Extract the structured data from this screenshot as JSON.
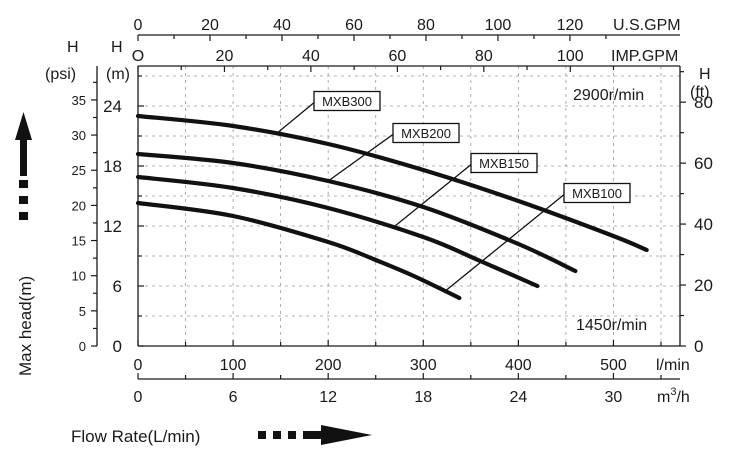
{
  "chart_data": {
    "type": "line",
    "axes": {
      "top_gpm": {
        "unit": "U.S.GPM",
        "ticks": [
          "0",
          "20",
          "40",
          "60",
          "80",
          "100",
          "120"
        ],
        "values": [
          0,
          20,
          40,
          60,
          80,
          100,
          120
        ]
      },
      "top_imp": {
        "unit": "IMP.GPM",
        "ticks": [
          "O",
          "20",
          "40",
          "60",
          "80",
          "100"
        ],
        "values": [
          0,
          20,
          40,
          60,
          80,
          100
        ]
      },
      "bottom_lmin": {
        "unit": "l/min",
        "ticks": [
          "0",
          "100",
          "200",
          "300",
          "400",
          "500"
        ],
        "values": [
          0,
          100,
          200,
          300,
          400,
          500
        ],
        "range": [
          0,
          570
        ]
      },
      "bottom_m3h": {
        "unit_main": "m",
        "unit_sup": "3",
        "unit_tail": "/h",
        "ticks": [
          "0",
          "6",
          "12",
          "18",
          "24",
          "30"
        ],
        "values": [
          0,
          6,
          12,
          18,
          24,
          30
        ]
      },
      "left_psi": {
        "title_top": "H",
        "title_unit": "(psi)",
        "ticks": [
          "0",
          "5",
          "10",
          "15",
          "20",
          "25",
          "30",
          "35"
        ],
        "values": [
          0,
          5,
          10,
          15,
          20,
          25,
          30,
          35
        ]
      },
      "left_m": {
        "title_top": "H",
        "title_unit": "(m)",
        "ticks": [
          "0",
          "6",
          "12",
          "18",
          "24"
        ],
        "values": [
          0,
          6,
          12,
          18,
          24
        ],
        "range": [
          0,
          28
        ]
      },
      "right_ft": {
        "title_top": "H",
        "title_unit": "(ft)",
        "ticks": [
          "0",
          "20",
          "40",
          "60",
          "80"
        ],
        "values": [
          0,
          20,
          40,
          60,
          80
        ]
      }
    },
    "x_label": "Flow Rate(L/min)",
    "y_label": "Max head(m)",
    "annotations": {
      "speed_high": "2900r/min",
      "speed_low": "1450r/min"
    },
    "grid": true,
    "series": [
      {
        "name": "MXB300",
        "x": [
          0,
          100,
          200,
          300,
          400,
          500,
          535
        ],
        "y": [
          23.0,
          22.0,
          20.2,
          17.6,
          14.5,
          11.0,
          9.6
        ]
      },
      {
        "name": "MXB200",
        "x": [
          0,
          100,
          200,
          300,
          400,
          460
        ],
        "y": [
          19.2,
          18.3,
          16.5,
          13.9,
          10.2,
          7.5
        ]
      },
      {
        "name": "MXB150",
        "x": [
          0,
          100,
          200,
          300,
          360,
          420
        ],
        "y": [
          16.9,
          15.8,
          13.8,
          10.9,
          8.5,
          6.0
        ]
      },
      {
        "name": "MXB100",
        "x": [
          0,
          100,
          200,
          250,
          290,
          338
        ],
        "y": [
          14.3,
          13.0,
          10.4,
          8.6,
          7.0,
          4.8
        ]
      }
    ]
  }
}
